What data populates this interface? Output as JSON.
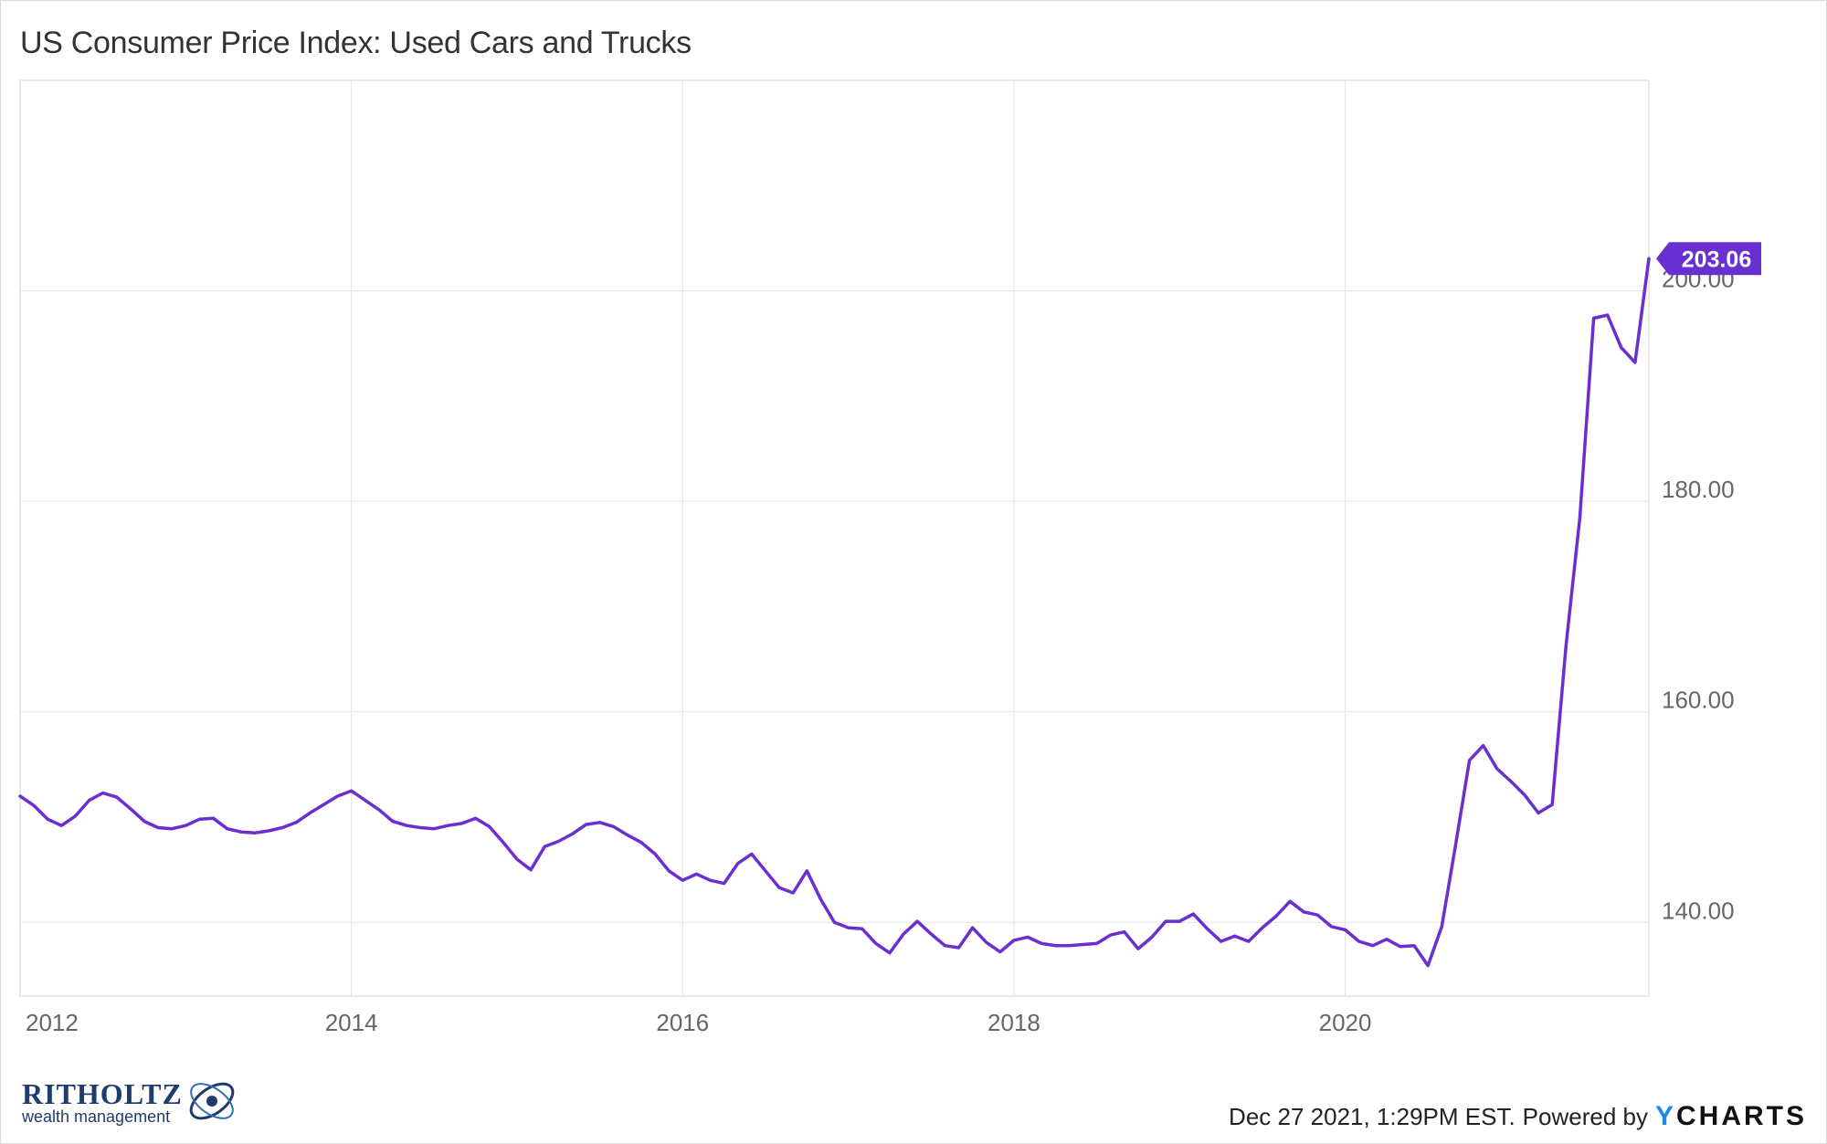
{
  "chart_title": "US Consumer Price Index: Used Cars and Trucks",
  "footer": {
    "timestamp": "Dec 27 2021, 1:29PM EST.",
    "powered_by": "Powered by",
    "brand_y": "Y",
    "brand_rest": "CHARTS",
    "logo_name": "RITHOLTZ",
    "logo_sub": "wealth management"
  },
  "colors": {
    "line": "#6a2fd0",
    "grid": "#e3e3e3",
    "axis_text": "#666666",
    "label_bg": "#6a2fd0"
  },
  "chart_data": {
    "type": "line",
    "title": "US Consumer Price Index: Used Cars and Trucks",
    "xlabel": "",
    "ylabel": "",
    "x_range": [
      "2012-01",
      "2021-11"
    ],
    "ylim": [
      133,
      220
    ],
    "x_ticks": [
      "2012",
      "2014",
      "2016",
      "2018",
      "2020"
    ],
    "y_ticks": [
      "140.00",
      "160.00",
      "180.00",
      "200.00"
    ],
    "y_tick_values": [
      140,
      160,
      180,
      200
    ],
    "grid": true,
    "last_value_label": "203.06",
    "series": [
      {
        "x": [
          "2012-01",
          "2012-02",
          "2012-03",
          "2012-04",
          "2012-05",
          "2012-06",
          "2012-07",
          "2012-08",
          "2012-09",
          "2012-10",
          "2012-11",
          "2012-12",
          "2013-01",
          "2013-02",
          "2013-03",
          "2013-04",
          "2013-05",
          "2013-06",
          "2013-07",
          "2013-08",
          "2013-09",
          "2013-10",
          "2013-11",
          "2013-12",
          "2014-01",
          "2014-02",
          "2014-03",
          "2014-04",
          "2014-05",
          "2014-06",
          "2014-07",
          "2014-08",
          "2014-09",
          "2014-10",
          "2014-11",
          "2014-12",
          "2015-01",
          "2015-02",
          "2015-03",
          "2015-04",
          "2015-05",
          "2015-06",
          "2015-07",
          "2015-08",
          "2015-09",
          "2015-10",
          "2015-11",
          "2015-12",
          "2016-01",
          "2016-02",
          "2016-03",
          "2016-04",
          "2016-05",
          "2016-06",
          "2016-07",
          "2016-08",
          "2016-09",
          "2016-10",
          "2016-11",
          "2016-12",
          "2017-01",
          "2017-02",
          "2017-03",
          "2017-04",
          "2017-05",
          "2017-06",
          "2017-07",
          "2017-08",
          "2017-09",
          "2017-10",
          "2017-11",
          "2017-12",
          "2018-01",
          "2018-02",
          "2018-03",
          "2018-04",
          "2018-05",
          "2018-06",
          "2018-07",
          "2018-08",
          "2018-09",
          "2018-10",
          "2018-11",
          "2018-12",
          "2019-01",
          "2019-02",
          "2019-03",
          "2019-04",
          "2019-05",
          "2019-06",
          "2019-07",
          "2019-08",
          "2019-09",
          "2019-10",
          "2019-11",
          "2019-12",
          "2020-01",
          "2020-02",
          "2020-03",
          "2020-04",
          "2020-05",
          "2020-06",
          "2020-07",
          "2020-08",
          "2020-09",
          "2020-10",
          "2020-11",
          "2020-12",
          "2021-01",
          "2021-02",
          "2021-03",
          "2021-04",
          "2021-05",
          "2021-06",
          "2021-07",
          "2021-08",
          "2021-09",
          "2021-10",
          "2021-11"
        ],
        "values": [
          152.0,
          151.1,
          149.8,
          149.2,
          150.1,
          151.6,
          152.3,
          151.9,
          150.8,
          149.6,
          149.0,
          148.9,
          149.2,
          149.8,
          149.9,
          148.9,
          148.6,
          148.5,
          148.7,
          149.0,
          149.5,
          150.4,
          151.2,
          152.0,
          152.5,
          151.6,
          150.7,
          149.6,
          149.2,
          149.0,
          148.9,
          149.2,
          149.4,
          149.9,
          149.1,
          147.6,
          146.0,
          145.0,
          147.2,
          147.7,
          148.4,
          149.3,
          149.5,
          149.1,
          148.3,
          147.6,
          146.5,
          144.9,
          144.0,
          144.6,
          144.0,
          143.7,
          145.6,
          146.5,
          144.9,
          143.3,
          142.8,
          144.9,
          142.2,
          140.0,
          139.5,
          139.4,
          138.0,
          137.1,
          138.9,
          140.1,
          138.9,
          137.8,
          137.6,
          139.5,
          138.1,
          137.2,
          138.3,
          138.6,
          138.0,
          137.8,
          137.8,
          137.9,
          138.0,
          138.8,
          139.1,
          137.5,
          138.6,
          140.1,
          140.1,
          140.8,
          139.4,
          138.2,
          138.7,
          138.2,
          139.5,
          140.6,
          142.0,
          141.0,
          140.7,
          139.6,
          139.3,
          138.2,
          137.8,
          138.4,
          137.7,
          137.8,
          135.9,
          139.6,
          147.4,
          155.4,
          156.8,
          154.6,
          153.4,
          152.1,
          150.4,
          151.2,
          166.3,
          178.4,
          197.4,
          197.7,
          194.6,
          193.2,
          203.06
        ]
      }
    ]
  }
}
